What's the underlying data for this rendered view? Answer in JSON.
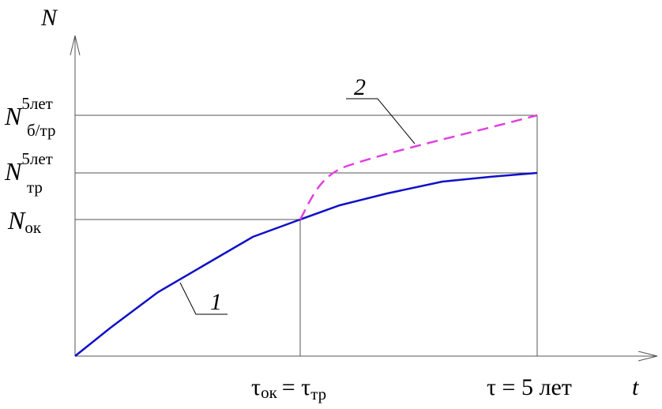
{
  "axes": {
    "y_label": "N",
    "x_label": "t"
  },
  "y_labels": [
    {
      "main": "N",
      "sup": "5лет",
      "sub": "б/тр"
    },
    {
      "main": "N",
      "sup": "5лет",
      "sub": "тр"
    },
    {
      "main": "N",
      "sub": "ок"
    }
  ],
  "x_labels": [
    {
      "left": "τ",
      "left_sub": "ок",
      "right": "= τ",
      "right_sub": "тр"
    },
    {
      "text": "τ = 5 лет"
    }
  ],
  "curves": [
    {
      "label": "1"
    },
    {
      "label": "2"
    }
  ]
}
